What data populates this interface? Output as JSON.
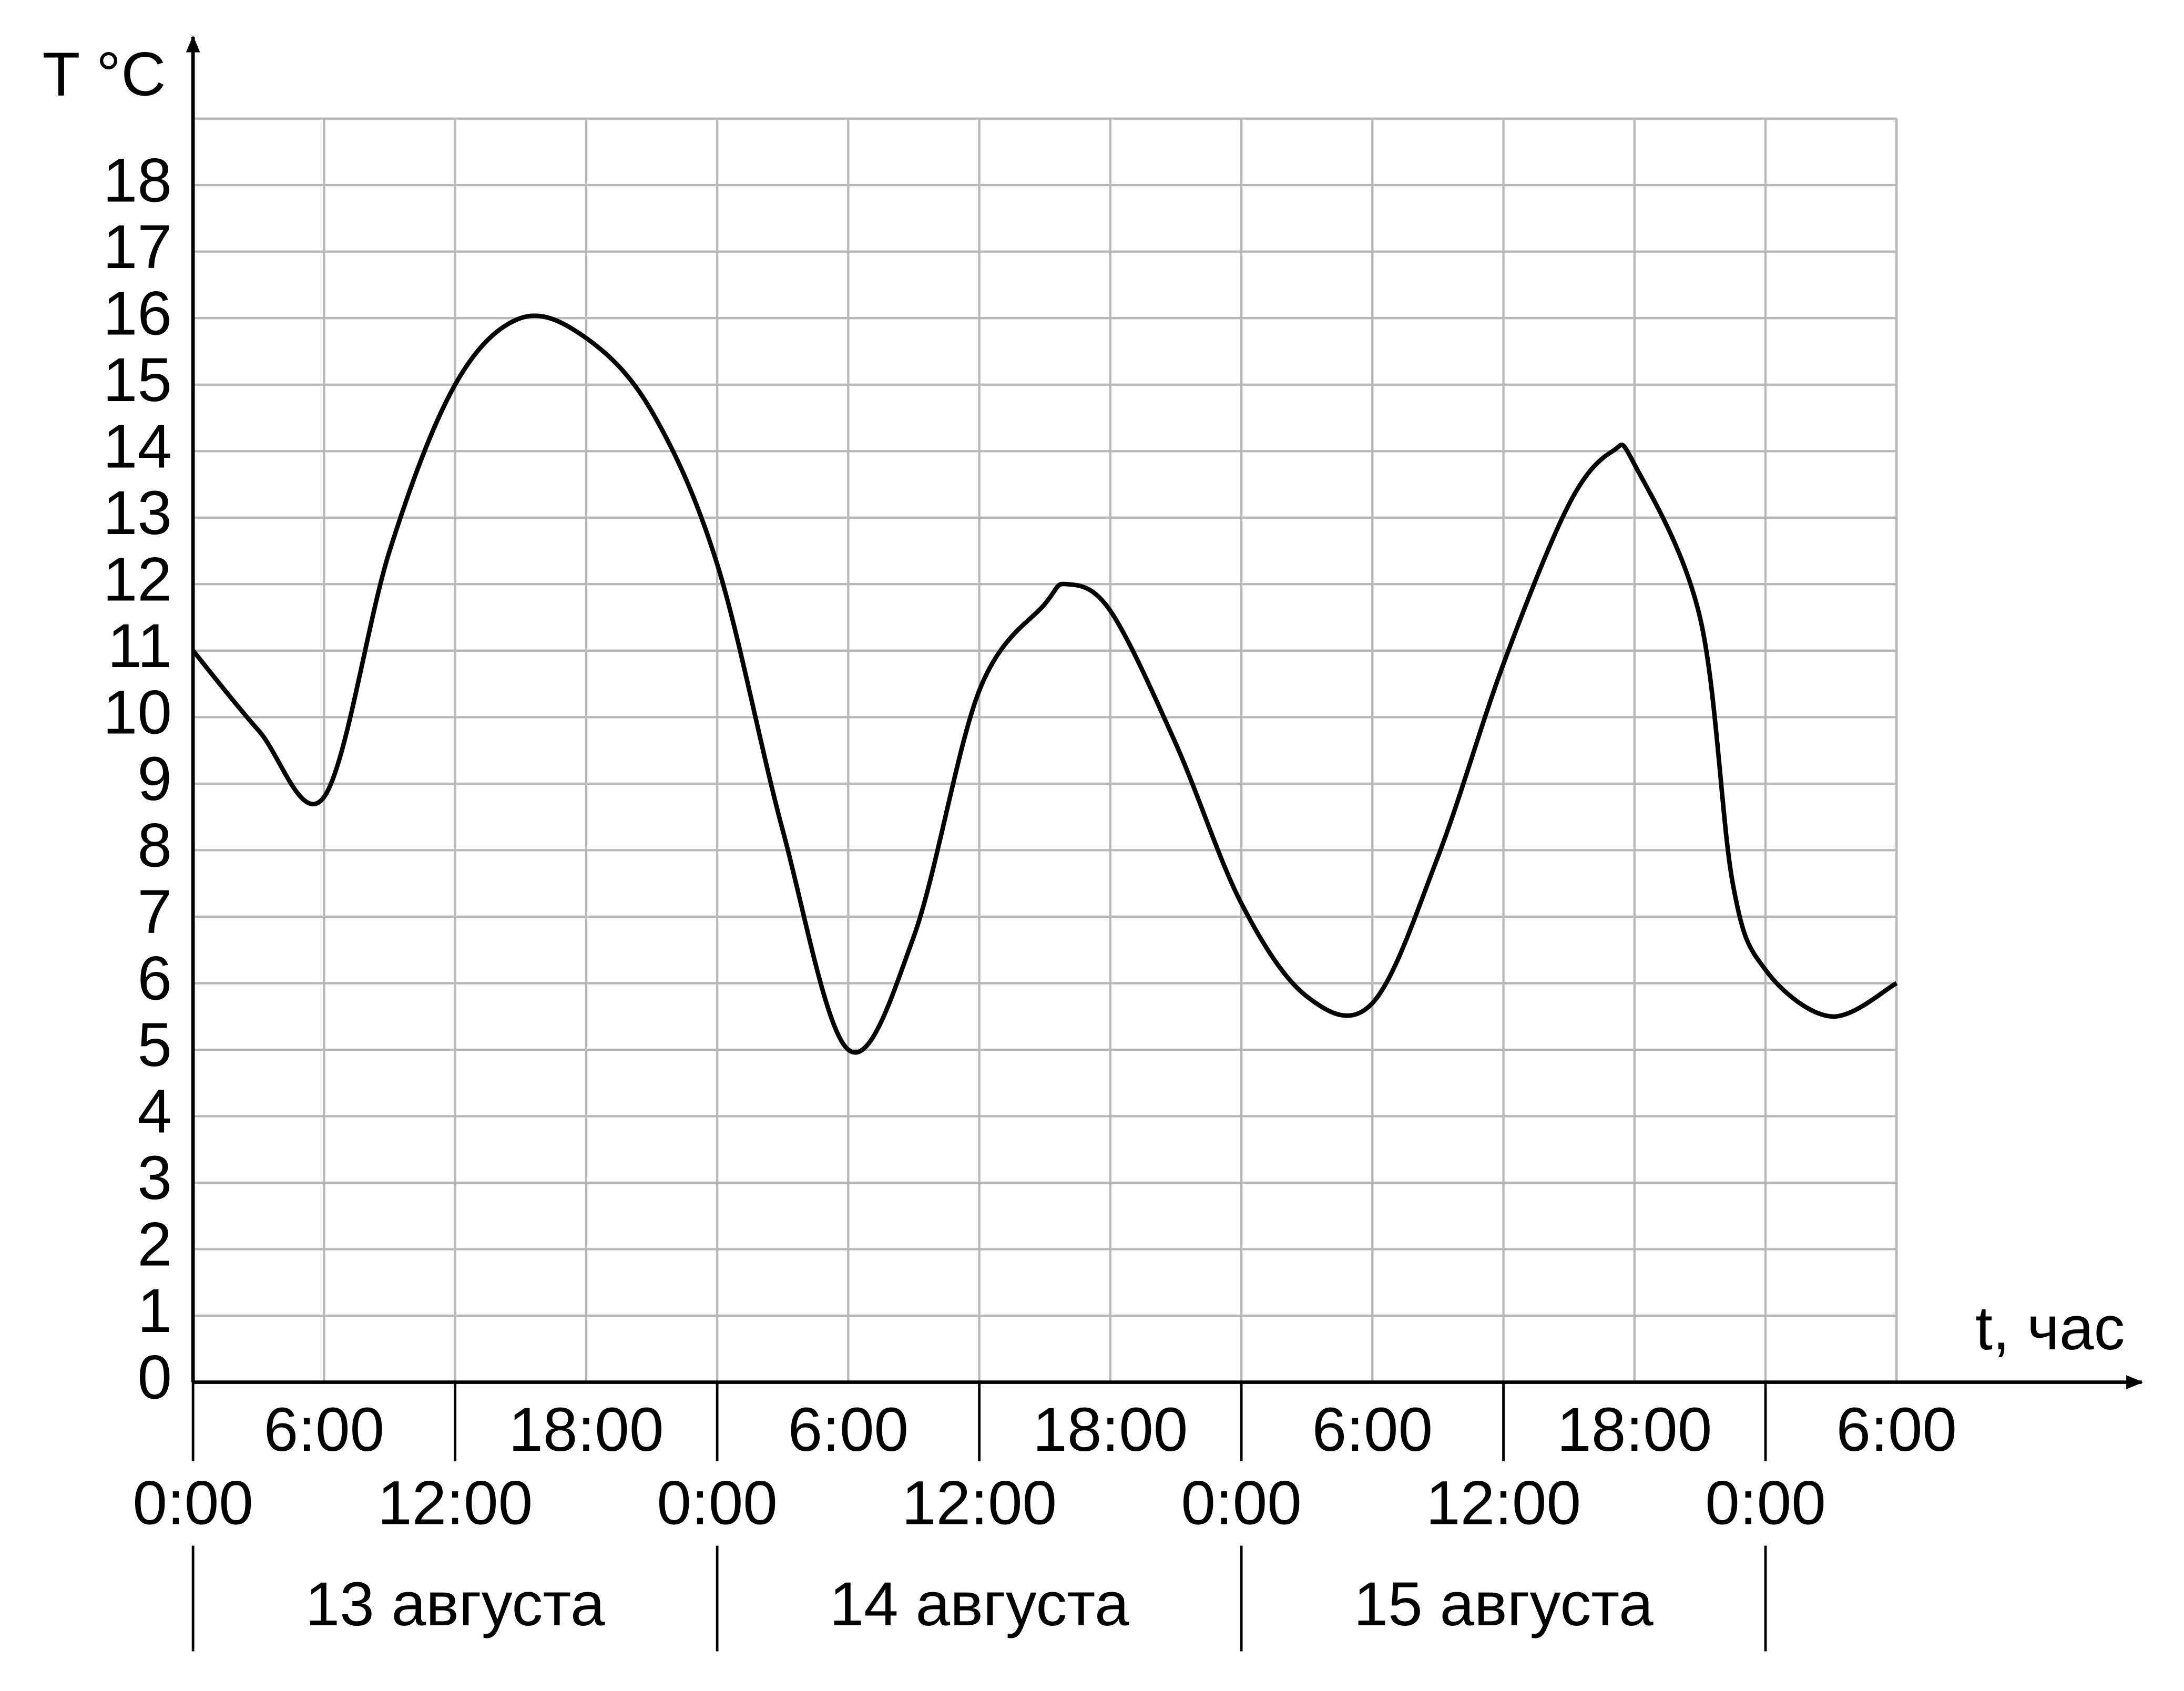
{
  "chart_data": {
    "type": "line",
    "ylabel": "T °C",
    "xlabel": "t, час",
    "x": [
      0,
      3,
      6,
      9,
      12,
      15,
      18,
      21,
      24,
      27,
      30,
      33,
      36,
      39,
      40,
      42,
      45,
      48,
      51,
      54,
      57,
      60,
      63,
      65,
      66,
      69,
      70.5,
      72,
      75,
      78
    ],
    "series": [
      {
        "color": "#000000",
        "values": [
          11,
          9.8,
          8.8,
          12.5,
          15,
          16,
          15.7,
          14.6,
          12.3,
          8.3,
          5,
          6.7,
          10.4,
          11.7,
          12,
          11.6,
          9.6,
          7.2,
          5.8,
          5.7,
          7.9,
          10.8,
          13.2,
          14,
          13.8,
          11.5,
          7.5,
          6.2,
          5.5,
          6
        ]
      }
    ],
    "xlim": [
      0,
      78
    ],
    "ylim": [
      0,
      19
    ],
    "xticks": [
      {
        "value": 0,
        "label": "0:00"
      },
      {
        "value": 6,
        "label": "6:00"
      },
      {
        "value": 12,
        "label": "12:00"
      },
      {
        "value": 18,
        "label": "18:00"
      },
      {
        "value": 24,
        "label": "0:00"
      },
      {
        "value": 30,
        "label": "6:00"
      },
      {
        "value": 36,
        "label": "12:00"
      },
      {
        "value": 42,
        "label": "18:00"
      },
      {
        "value": 48,
        "label": "0:00"
      },
      {
        "value": 54,
        "label": "6:00"
      },
      {
        "value": 60,
        "label": "12:00"
      },
      {
        "value": 66,
        "label": "18:00"
      },
      {
        "value": 72,
        "label": "0:00"
      },
      {
        "value": 78,
        "label": "6:00"
      }
    ],
    "yticks": [
      0,
      1,
      2,
      3,
      4,
      5,
      6,
      7,
      8,
      9,
      10,
      11,
      12,
      13,
      14,
      15,
      16,
      17,
      18
    ],
    "days": [
      {
        "label": "13 августа",
        "start": 0,
        "end": 24
      },
      {
        "label": "14 августа",
        "start": 24,
        "end": 48
      },
      {
        "label": "15 августа",
        "start": 48,
        "end": 72
      }
    ],
    "grid": true
  }
}
